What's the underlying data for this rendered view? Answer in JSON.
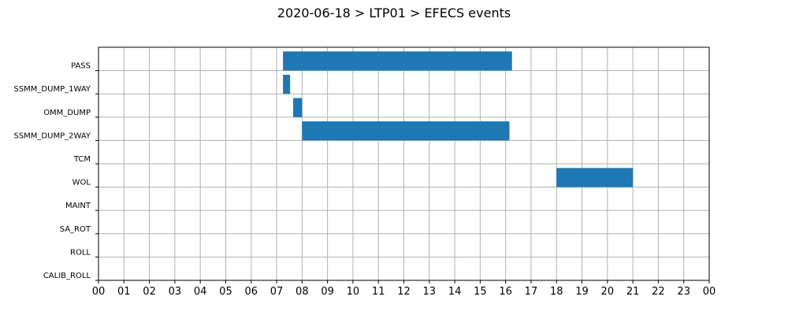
{
  "chart_data": {
    "type": "bar",
    "orientation": "horizontal-timeline",
    "title": "2020-06-18 > LTP01 > EFECS events",
    "xlabel": "",
    "ylabel": "",
    "x_unit": "hour of day",
    "xlim": [
      0,
      24
    ],
    "x_tick_labels": [
      "00",
      "01",
      "02",
      "03",
      "04",
      "05",
      "06",
      "07",
      "08",
      "09",
      "10",
      "11",
      "12",
      "13",
      "14",
      "15",
      "16",
      "17",
      "18",
      "19",
      "20",
      "21",
      "22",
      "23",
      "00"
    ],
    "categories": [
      "PASS",
      "SSMM_DUMP_1WAY",
      "OMM_DUMP",
      "SSMM_DUMP_2WAY",
      "TCM",
      "WOL",
      "MAINT",
      "SA_ROT",
      "ROLL",
      "CALIB_ROLL"
    ],
    "grid": true,
    "bar_color": "#1f77b4",
    "events": [
      {
        "category": "PASS",
        "start": 7.25,
        "end": 16.25
      },
      {
        "category": "SSMM_DUMP_1WAY",
        "start": 7.25,
        "end": 7.53
      },
      {
        "category": "OMM_DUMP",
        "start": 7.65,
        "end": 8.0
      },
      {
        "category": "SSMM_DUMP_2WAY",
        "start": 8.0,
        "end": 16.15
      },
      {
        "category": "WOL",
        "start": 18.0,
        "end": 21.0
      }
    ]
  }
}
